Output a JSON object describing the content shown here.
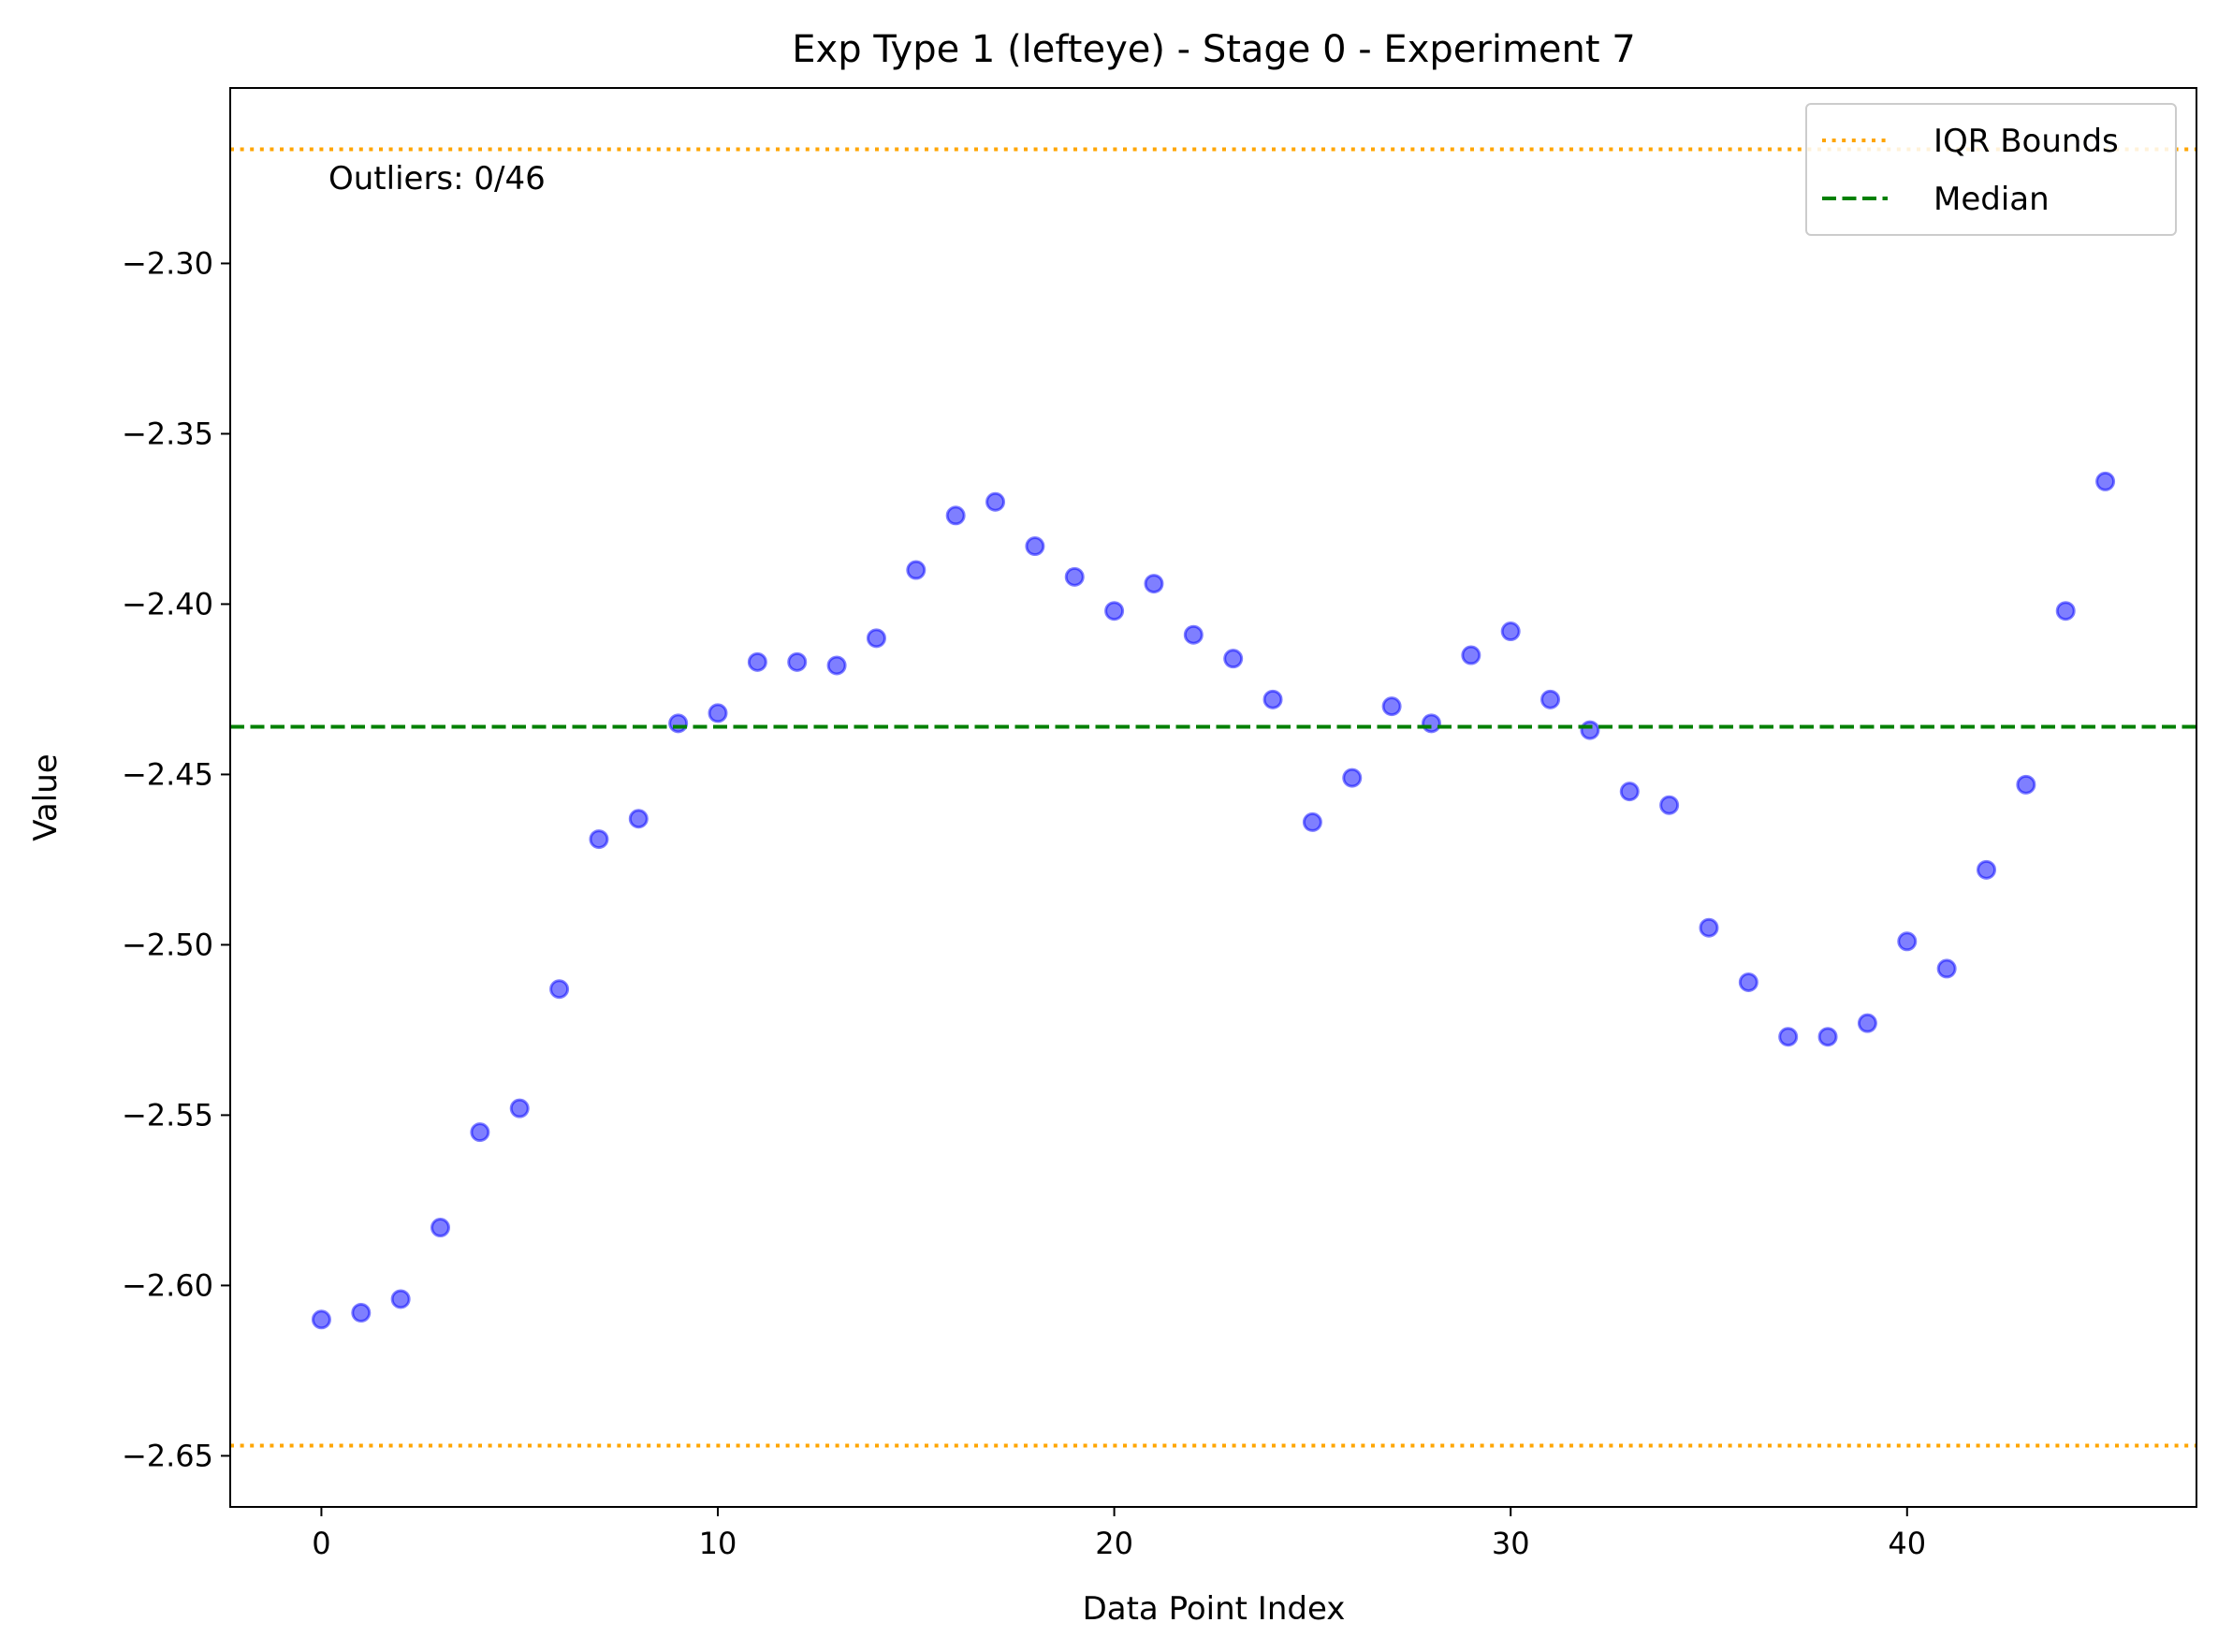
{
  "chart_data": {
    "type": "scatter",
    "title": "Exp Type 1 (lefteye) - Stage 0 - Experiment 7",
    "xlabel": "Data Point Index",
    "ylabel": "Value",
    "xlim": [
      -2.3,
      47.3
    ],
    "ylim": [
      -2.665,
      -2.2485
    ],
    "xticks": [
      0,
      10,
      20,
      30,
      40
    ],
    "xtick_labels": [
      "0",
      "10",
      "20",
      "30",
      "40"
    ],
    "yticks": [
      -2.3,
      -2.35,
      -2.4,
      -2.45,
      -2.5,
      -2.55,
      -2.6,
      -2.65
    ],
    "ytick_labels": [
      "−2.30",
      "−2.35",
      "−2.40",
      "−2.45",
      "−2.50",
      "−2.55",
      "−2.60",
      "−2.65"
    ],
    "grid": false,
    "legend_position": "top-right",
    "annotation": "Outliers: 0/46",
    "series": [
      {
        "kind": "points",
        "color": "#0000ff",
        "x": [
          0,
          1,
          2,
          3,
          4,
          5,
          6,
          7,
          8,
          9,
          10,
          11,
          12,
          13,
          14,
          15,
          16,
          17,
          18,
          19,
          20,
          21,
          22,
          23,
          24,
          25,
          26,
          27,
          28,
          29,
          30,
          31,
          32,
          33,
          34,
          35,
          36,
          37,
          38,
          39,
          40,
          41,
          42,
          43,
          44,
          45
        ],
        "y": [
          -2.61,
          -2.608,
          -2.604,
          -2.583,
          -2.555,
          -2.548,
          -2.513,
          -2.469,
          -2.463,
          -2.435,
          -2.432,
          -2.417,
          -2.417,
          -2.418,
          -2.41,
          -2.39,
          -2.374,
          -2.37,
          -2.383,
          -2.392,
          -2.402,
          -2.394,
          -2.409,
          -2.416,
          -2.428,
          -2.464,
          -2.451,
          -2.43,
          -2.435,
          -2.415,
          -2.408,
          -2.428,
          -2.437,
          -2.455,
          -2.459,
          -2.495,
          -2.511,
          -2.527,
          -2.527,
          -2.523,
          -2.499,
          -2.507,
          -2.478,
          -2.453,
          -2.402,
          -2.364
        ]
      },
      {
        "kind": "hline",
        "name": "IQR Bounds",
        "color": "#ffa500",
        "style": "dotted",
        "values": [
          -2.2665,
          -2.647
        ]
      },
      {
        "kind": "hline",
        "name": "Median",
        "color": "#008000",
        "style": "dashed",
        "values": [
          -2.436
        ]
      }
    ]
  }
}
